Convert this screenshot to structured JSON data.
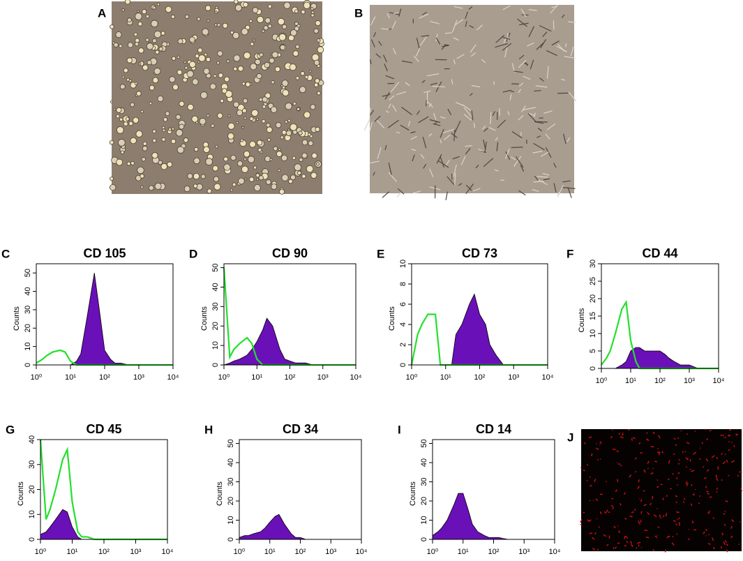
{
  "panels": [
    {
      "label": "A"
    },
    {
      "label": "B"
    },
    {
      "label": "J"
    }
  ],
  "chart_data": [
    {
      "type": "area",
      "label": "C",
      "title": "CD 105",
      "ylabel": "Counts",
      "x": [
        1,
        1.5,
        2,
        3,
        5,
        7,
        10,
        15,
        20,
        30,
        50,
        70,
        100,
        150,
        200,
        300,
        500,
        700,
        1000,
        2000,
        5000,
        10000
      ],
      "xscale": "log",
      "xlim": [
        1,
        10000
      ],
      "xticks": [
        {
          "value": 1,
          "label": "10⁰"
        },
        {
          "value": 10,
          "label": "10¹"
        },
        {
          "value": 100,
          "label": "10²"
        },
        {
          "value": 1000,
          "label": "10³"
        },
        {
          "value": 10000,
          "label": "10⁴"
        }
      ],
      "ylim": [
        0,
        55
      ],
      "yticks": [
        0,
        10,
        20,
        30,
        40,
        50
      ],
      "series": [
        {
          "color": "#6a10b8",
          "fill": true,
          "values": [
            0,
            0,
            0,
            0,
            0,
            0,
            0,
            2,
            6,
            25,
            50,
            30,
            8,
            3,
            1,
            1,
            0,
            0,
            0,
            0,
            0,
            0
          ]
        },
        {
          "color": "#22e02a",
          "fill": false,
          "values": [
            1,
            3,
            5,
            7,
            8,
            7,
            2,
            0,
            0,
            0,
            0,
            0,
            0,
            0,
            0,
            0,
            0,
            0,
            0,
            0,
            0,
            0
          ]
        }
      ]
    },
    {
      "type": "area",
      "label": "D",
      "title": "CD 90",
      "ylabel": "Counts",
      "x": [
        1,
        1.5,
        2,
        3,
        5,
        7,
        10,
        15,
        20,
        30,
        50,
        70,
        100,
        150,
        200,
        300,
        500,
        700,
        1000,
        2000,
        5000,
        10000
      ],
      "xscale": "log",
      "xlim": [
        1,
        10000
      ],
      "xticks": [
        {
          "value": 1,
          "label": "10⁰"
        },
        {
          "value": 10,
          "label": "10¹"
        },
        {
          "value": 100,
          "label": "10²"
        },
        {
          "value": 1000,
          "label": "10³"
        },
        {
          "value": 10000,
          "label": "10⁴"
        }
      ],
      "ylim": [
        0,
        52
      ],
      "yticks": [
        0,
        10,
        20,
        30,
        40,
        50
      ],
      "series": [
        {
          "color": "#6a10b8",
          "fill": true,
          "values": [
            0,
            1,
            2,
            3,
            5,
            8,
            12,
            18,
            24,
            20,
            8,
            3,
            2,
            1,
            1,
            1,
            0,
            0,
            0,
            0,
            0,
            0
          ]
        },
        {
          "color": "#22e02a",
          "fill": false,
          "values": [
            50,
            4,
            8,
            11,
            14,
            11,
            3,
            0,
            0,
            0,
            0,
            0,
            0,
            0,
            0,
            0,
            0,
            0,
            0,
            0,
            0,
            0
          ]
        }
      ]
    },
    {
      "type": "area",
      "label": "E",
      "title": "CD 73",
      "ylabel": "Counts",
      "x": [
        1,
        1.5,
        2,
        3,
        5,
        7,
        10,
        15,
        20,
        30,
        50,
        70,
        100,
        150,
        200,
        300,
        500,
        700,
        1000,
        2000,
        5000,
        10000
      ],
      "xscale": "log",
      "xlim": [
        1,
        10000
      ],
      "xticks": [
        {
          "value": 1,
          "label": "10⁰"
        },
        {
          "value": 10,
          "label": "10¹"
        },
        {
          "value": 100,
          "label": "10²"
        },
        {
          "value": 1000,
          "label": "10³"
        },
        {
          "value": 10000,
          "label": "10⁴"
        }
      ],
      "ylim": [
        0,
        10
      ],
      "yticks": [
        0,
        2,
        4,
        6,
        8,
        10
      ],
      "series": [
        {
          "color": "#6a10b8",
          "fill": true,
          "values": [
            0,
            0,
            0,
            0,
            0,
            0,
            0,
            0,
            3,
            4,
            6,
            7,
            5,
            4,
            2,
            1,
            0,
            0,
            0,
            0,
            0,
            0
          ]
        },
        {
          "color": "#22e02a",
          "fill": false,
          "values": [
            0,
            3,
            4,
            5,
            5,
            0,
            0,
            0,
            0,
            0,
            0,
            0,
            0,
            0,
            0,
            0,
            0,
            0,
            0,
            0,
            0,
            0
          ]
        }
      ]
    },
    {
      "type": "area",
      "label": "F",
      "title": "CD 44",
      "ylabel": "Counts",
      "x": [
        1,
        1.5,
        2,
        3,
        5,
        7,
        10,
        15,
        20,
        30,
        50,
        70,
        100,
        150,
        200,
        300,
        500,
        700,
        1000,
        2000,
        5000,
        10000
      ],
      "xscale": "log",
      "xlim": [
        1,
        10000
      ],
      "xticks": [
        {
          "value": 1,
          "label": "10⁰"
        },
        {
          "value": 10,
          "label": "10¹"
        },
        {
          "value": 100,
          "label": "10²"
        },
        {
          "value": 1000,
          "label": "10³"
        },
        {
          "value": 10000,
          "label": "10⁴"
        }
      ],
      "ylim": [
        0,
        30
      ],
      "yticks": [
        0,
        5,
        10,
        15,
        20,
        25,
        30
      ],
      "series": [
        {
          "color": "#6a10b8",
          "fill": true,
          "values": [
            0,
            0,
            0,
            0,
            1,
            2,
            5,
            6,
            6,
            5,
            5,
            5,
            5,
            4,
            3,
            2,
            1,
            1,
            1,
            0,
            0,
            0
          ]
        },
        {
          "color": "#22e02a",
          "fill": false,
          "values": [
            1,
            3,
            5,
            10,
            17,
            19,
            8,
            2,
            0,
            0,
            0,
            0,
            0,
            0,
            0,
            0,
            0,
            0,
            0,
            0,
            0,
            0
          ]
        }
      ]
    },
    {
      "type": "area",
      "label": "G",
      "title": "CD 45",
      "ylabel": "Counts",
      "x": [
        1,
        1.5,
        2,
        3,
        5,
        7,
        10,
        15,
        20,
        30,
        50,
        70,
        100,
        150,
        200,
        300,
        500,
        700,
        1000,
        2000,
        5000,
        10000
      ],
      "xscale": "log",
      "xlim": [
        1,
        10000
      ],
      "xticks": [
        {
          "value": 1,
          "label": "10⁰"
        },
        {
          "value": 10,
          "label": "10¹"
        },
        {
          "value": 100,
          "label": "10²"
        },
        {
          "value": 1000,
          "label": "10³"
        },
        {
          "value": 10000,
          "label": "10⁴"
        }
      ],
      "ylim": [
        0,
        40
      ],
      "yticks": [
        0,
        10,
        20,
        30,
        40
      ],
      "series": [
        {
          "color": "#6a10b8",
          "fill": true,
          "values": [
            2,
            3,
            5,
            8,
            12,
            11,
            5,
            1,
            0,
            0,
            0,
            0,
            0,
            0,
            0,
            0,
            0,
            0,
            0,
            0,
            0,
            0
          ]
        },
        {
          "color": "#22e02a",
          "fill": false,
          "values": [
            40,
            8,
            12,
            20,
            32,
            36,
            15,
            3,
            1,
            1,
            0,
            0,
            0,
            0,
            0,
            0,
            0,
            0,
            0,
            0,
            0,
            0
          ]
        }
      ]
    },
    {
      "type": "area",
      "label": "H",
      "title": "CD 34",
      "ylabel": "Counts",
      "x": [
        1,
        1.5,
        2,
        3,
        5,
        7,
        10,
        15,
        20,
        30,
        50,
        70,
        100,
        150,
        200,
        300,
        500,
        700,
        1000,
        2000,
        5000,
        10000
      ],
      "xscale": "log",
      "xlim": [
        1,
        10000
      ],
      "xticks": [
        {
          "value": 1,
          "label": "10⁰"
        },
        {
          "value": 10,
          "label": "10¹"
        },
        {
          "value": 100,
          "label": "10²"
        },
        {
          "value": 1000,
          "label": "10³"
        },
        {
          "value": 10000,
          "label": "10⁴"
        }
      ],
      "ylim": [
        0,
        52
      ],
      "yticks": [
        0,
        10,
        20,
        30,
        40,
        50
      ],
      "series": [
        {
          "color": "#6a10b8",
          "fill": true,
          "values": [
            1,
            2,
            2,
            3,
            4,
            6,
            9,
            12,
            13,
            8,
            3,
            1,
            1,
            0,
            0,
            0,
            0,
            0,
            0,
            0,
            0,
            0
          ]
        }
      ]
    },
    {
      "type": "area",
      "label": "I",
      "title": "CD 14",
      "ylabel": "Counts",
      "x": [
        1,
        1.5,
        2,
        3,
        5,
        7,
        10,
        15,
        20,
        30,
        50,
        70,
        100,
        150,
        200,
        300,
        500,
        700,
        1000,
        2000,
        5000,
        10000
      ],
      "xscale": "log",
      "xlim": [
        1,
        10000
      ],
      "xticks": [
        {
          "value": 1,
          "label": "10⁰"
        },
        {
          "value": 10,
          "label": "10¹"
        },
        {
          "value": 100,
          "label": "10²"
        },
        {
          "value": 1000,
          "label": "10³"
        },
        {
          "value": 10000,
          "label": "10⁴"
        }
      ],
      "ylim": [
        0,
        52
      ],
      "yticks": [
        0,
        10,
        20,
        30,
        40,
        50
      ],
      "series": [
        {
          "color": "#6a10b8",
          "fill": true,
          "values": [
            2,
            4,
            6,
            10,
            18,
            24,
            24,
            15,
            8,
            4,
            2,
            1,
            1,
            1,
            0.5,
            0,
            0,
            0,
            0,
            0,
            0,
            0
          ]
        }
      ]
    }
  ]
}
